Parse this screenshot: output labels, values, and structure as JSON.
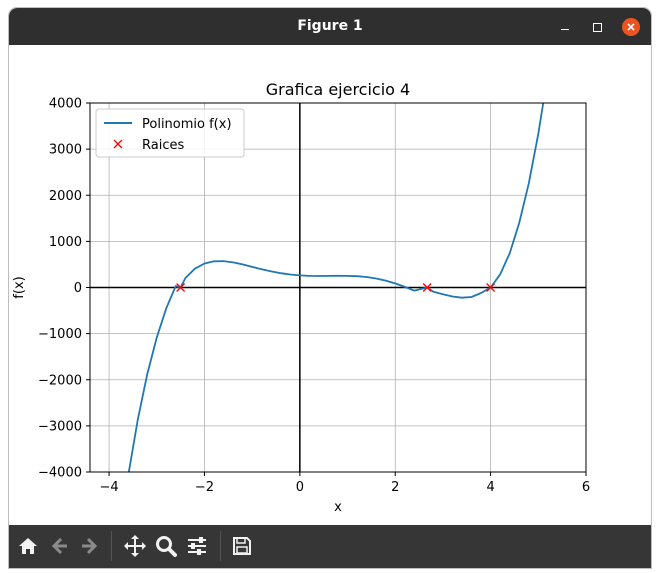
{
  "window": {
    "title": "Figure 1",
    "controls": [
      "minimize-icon",
      "maximize-icon",
      "close-icon"
    ]
  },
  "toolbar": {
    "tools": [
      "home-icon",
      "back-arrow-icon",
      "forward-arrow-icon",
      "pan-icon",
      "zoom-icon",
      "configure-subplots-icon",
      "save-icon"
    ]
  },
  "colors": {
    "curve": "#1f77b4",
    "roots": "#ff0000",
    "axes_lines": "#000000",
    "grid": "#b0b0b0",
    "titlebar": "#2f2f2f",
    "toolbar": "#363636",
    "close_button": "#e95420"
  },
  "chart_data": {
    "type": "line",
    "title": "Grafica ejercicio 4",
    "xlabel": "x",
    "ylabel": "f(x)",
    "xlim": [
      -4.4,
      6.0
    ],
    "ylim": [
      -4000,
      4000
    ],
    "xticks": [
      -4,
      -2,
      0,
      2,
      4,
      6
    ],
    "xtick_labels": [
      "−4",
      "−2",
      "0",
      "2",
      "4",
      "6"
    ],
    "yticks": [
      -4000,
      -3000,
      -2000,
      -1000,
      0,
      1000,
      2000,
      3000,
      4000
    ],
    "ytick_labels": [
      "−4000",
      "−3000",
      "−2000",
      "−1000",
      "0",
      "1000",
      "2000",
      "3000",
      "4000"
    ],
    "grid": true,
    "legend_position": "upper-left",
    "series": [
      {
        "name": "Polinomio f(x)",
        "kind": "line",
        "x": [
          -3.6,
          -3.4,
          -3.2,
          -3.0,
          -2.8,
          -2.6,
          -2.5,
          -2.4,
          -2.2,
          -2.0,
          -1.8,
          -1.6,
          -1.4,
          -1.2,
          -1.0,
          -0.8,
          -0.6,
          -0.4,
          -0.2,
          0.0,
          0.2,
          0.4,
          0.6,
          0.8,
          1.0,
          1.2,
          1.4,
          1.6,
          1.8,
          2.0,
          2.2,
          2.4,
          2.67,
          2.8,
          3.0,
          3.2,
          3.4,
          3.6,
          3.8,
          4.0,
          4.2,
          4.4,
          4.6,
          4.8,
          5.0,
          5.2
        ],
        "y": [
          -4081,
          -2875,
          -1883,
          -1081,
          -449,
          33,
          0,
          207,
          408,
          521,
          569,
          572,
          545,
          500,
          447,
          395,
          348,
          310,
          281,
          262,
          252,
          249,
          251,
          253,
          252,
          245,
          227,
          196,
          150,
          88,
          12,
          -67,
          0,
          -92,
          -147,
          -195,
          -222,
          -206,
          -119,
          0,
          287,
          741,
          1398,
          2259,
          3332,
          4617
        ]
      },
      {
        "name": "Raices",
        "kind": "markers",
        "x": [
          -2.5,
          2.67,
          4.0
        ],
        "y": [
          0,
          0,
          0
        ]
      }
    ]
  }
}
